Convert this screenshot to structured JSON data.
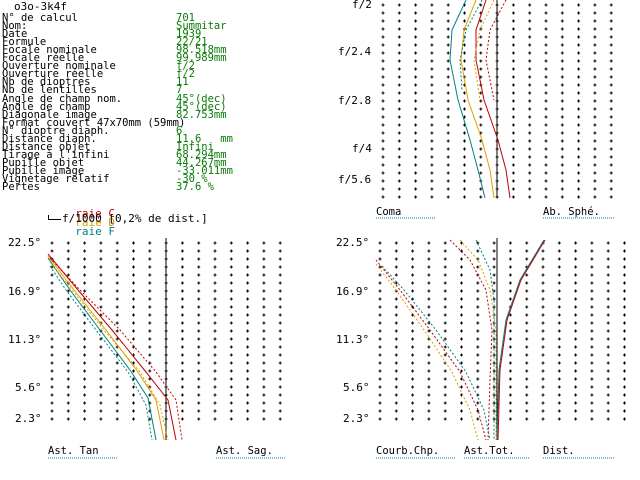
{
  "header": {
    "title": "o3o-3k4f"
  },
  "params": [
    {
      "label": "N° de calcul",
      "value": "701"
    },
    {
      "label": "Nom:",
      "value": "Summitar"
    },
    {
      "label": "Date",
      "value": "1939"
    },
    {
      "label": "Formule",
      "value": "22/21"
    },
    {
      "label": "Focale nominale",
      "value": "98.518mm"
    },
    {
      "label": "Focale réelle",
      "value": "99.989mm"
    },
    {
      "label": "Ouverture nominale",
      "value": "f/2"
    },
    {
      "label": "Ouverture réelle",
      "value": "f/2"
    },
    {
      "label": "Nb de dioptres",
      "value": "11"
    },
    {
      "label": "Nb de lentilles",
      "value": "7"
    },
    {
      "label": "Angle de champ nom.",
      "value": "45°(dec)"
    },
    {
      "label": "Angle de champ",
      "value": "45°(dec)"
    },
    {
      "label": "Diagonale image",
      "value": "82.753mm"
    },
    {
      "label": "Format couvert 47x70mm (59mm)",
      "value": ""
    },
    {
      "label": "N° dioptre diaph.",
      "value": "6"
    },
    {
      "label": "Distance diaph.",
      "value": "11.6   mm"
    },
    {
      "label": "Distance objet",
      "value": "Infini"
    },
    {
      "label": "Tirage à l'infini",
      "value": "68.294mm"
    },
    {
      "label": "Pupille objet",
      "value": "44.267mm"
    },
    {
      "label": "Pupille image",
      "value": "-33.011mm"
    },
    {
      "label": "Vignetage relatif",
      "value": "-30 %"
    },
    {
      "label": "Pertes",
      "value": "37.6 %"
    }
  ],
  "legend": {
    "c_label": "raie C",
    "d_label": "raie D",
    "f_label": "raie F",
    "scale_text": "f/1000 [0,2% de dist.]"
  },
  "colors": {
    "C": "#c00000",
    "D": "#e0a000",
    "F": "#008080",
    "axis": "#000000",
    "underline": "#0070c0"
  },
  "top_right": {
    "aperture_labels": [
      "f/2",
      "f/2.4",
      "f/2.8",
      "f/4",
      "f/5.6"
    ],
    "left_title": "Coma",
    "right_title": "Ab. Sphé."
  },
  "bottom_left": {
    "field_labels": [
      "22.5°",
      "16.9°",
      "11.3°",
      "5.6°",
      "2.3°"
    ],
    "left_title": "Ast. Tan",
    "right_title": "Ast. Sag."
  },
  "bottom_right": {
    "field_labels": [
      "22.5°",
      "16.9°",
      "11.3°",
      "5.6°",
      "2.3°"
    ],
    "title1": "Courb.Chp.",
    "title2": "Ast.Tot.",
    "title3": "Dist."
  }
}
